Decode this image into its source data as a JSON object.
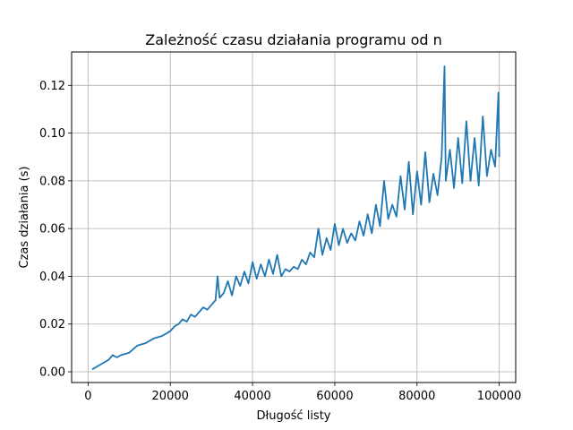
{
  "chart_data": {
    "type": "line",
    "title": "Zależność czasu działania programu od n",
    "xlabel": "Długość listy",
    "ylabel": "Czas działania (s)",
    "xlim": [
      -4000,
      104000
    ],
    "ylim": [
      -0.0045,
      0.134
    ],
    "grid": true,
    "x_ticks": [
      0,
      20000,
      40000,
      60000,
      80000,
      100000
    ],
    "x_tick_labels": [
      "0",
      "20000",
      "40000",
      "60000",
      "80000",
      "100000"
    ],
    "y_ticks": [
      0.0,
      0.02,
      0.04,
      0.06,
      0.08,
      0.1,
      0.12
    ],
    "y_tick_labels": [
      "0.00",
      "0.02",
      "0.04",
      "0.06",
      "0.08",
      "0.10",
      "0.12"
    ],
    "series": [
      {
        "color": "#1f77b4",
        "x": [
          1000,
          3000,
          5000,
          6000,
          7000,
          8000,
          10000,
          12000,
          14000,
          16000,
          18000,
          20000,
          21000,
          22000,
          23000,
          24000,
          25000,
          26000,
          27000,
          28000,
          29000,
          30000,
          31000,
          31500,
          32000,
          33000,
          34000,
          35000,
          36000,
          37000,
          38000,
          39000,
          40000,
          41000,
          42000,
          43000,
          44000,
          45000,
          46000,
          47000,
          48000,
          49000,
          50000,
          51000,
          52000,
          53000,
          54000,
          55000,
          56000,
          57000,
          58000,
          59000,
          60000,
          61000,
          62000,
          63000,
          64000,
          65000,
          66000,
          67000,
          68000,
          69000,
          70000,
          71000,
          72000,
          73000,
          74000,
          75000,
          76000,
          77000,
          78000,
          79000,
          80000,
          81000,
          82000,
          83000,
          84000,
          85000,
          86000,
          86700,
          87000,
          88000,
          89000,
          90000,
          91000,
          92000,
          93000,
          94000,
          95000,
          96000,
          97000,
          98000,
          99000,
          99800,
          100000
        ],
        "values": [
          0.001,
          0.003,
          0.005,
          0.007,
          0.006,
          0.007,
          0.008,
          0.011,
          0.012,
          0.014,
          0.015,
          0.017,
          0.019,
          0.02,
          0.022,
          0.021,
          0.024,
          0.023,
          0.025,
          0.027,
          0.026,
          0.028,
          0.03,
          0.04,
          0.031,
          0.033,
          0.038,
          0.032,
          0.04,
          0.036,
          0.042,
          0.037,
          0.046,
          0.039,
          0.045,
          0.04,
          0.047,
          0.041,
          0.049,
          0.04,
          0.043,
          0.042,
          0.044,
          0.043,
          0.047,
          0.045,
          0.05,
          0.048,
          0.06,
          0.049,
          0.056,
          0.051,
          0.062,
          0.053,
          0.06,
          0.054,
          0.058,
          0.055,
          0.063,
          0.057,
          0.066,
          0.058,
          0.07,
          0.061,
          0.08,
          0.064,
          0.07,
          0.065,
          0.082,
          0.068,
          0.088,
          0.066,
          0.084,
          0.07,
          0.092,
          0.071,
          0.083,
          0.074,
          0.09,
          0.128,
          0.08,
          0.093,
          0.077,
          0.098,
          0.079,
          0.105,
          0.08,
          0.098,
          0.078,
          0.107,
          0.082,
          0.093,
          0.086,
          0.117,
          0.09
        ]
      }
    ]
  }
}
